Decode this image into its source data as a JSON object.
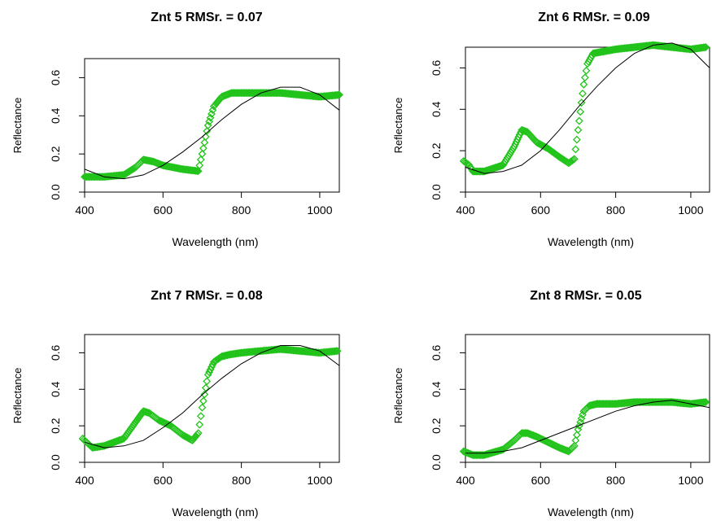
{
  "figure": {
    "background": "#ffffff",
    "observed_color": "#22c31b",
    "fit_color": "#000000"
  },
  "chart_data": [
    {
      "type": "line",
      "title": "Znt 5 RMSr. = 0.07",
      "xlabel": "Wavelength (nm)",
      "ylabel": "Reflectance",
      "xlim": [
        400,
        1050
      ],
      "ylim": [
        0,
        0.7
      ],
      "xticks": [
        400,
        600,
        800,
        1000
      ],
      "xtick_labels": [
        "400",
        "600",
        "800",
        "1000"
      ],
      "yticks": [
        0,
        0.2,
        0.4,
        0.6
      ],
      "ytick_labels": [
        "0.0",
        "0.2",
        "0.4",
        "0.6"
      ],
      "grid": false,
      "series": [
        {
          "role": "observed",
          "marker": "diamond-open",
          "x": [
            400,
            450,
            500,
            530,
            550,
            575,
            600,
            650,
            690,
            700,
            715,
            730,
            750,
            775,
            800,
            850,
            900,
            950,
            1000,
            1050
          ],
          "y": [
            0.08,
            0.08,
            0.09,
            0.13,
            0.17,
            0.16,
            0.14,
            0.12,
            0.11,
            0.2,
            0.35,
            0.45,
            0.5,
            0.52,
            0.52,
            0.52,
            0.52,
            0.51,
            0.5,
            0.51
          ]
        },
        {
          "role": "fit",
          "x": [
            400,
            450,
            500,
            550,
            600,
            650,
            700,
            750,
            800,
            850,
            900,
            950,
            1000,
            1050
          ],
          "y": [
            0.12,
            0.08,
            0.07,
            0.09,
            0.14,
            0.21,
            0.29,
            0.38,
            0.46,
            0.52,
            0.55,
            0.55,
            0.51,
            0.43
          ]
        }
      ]
    },
    {
      "type": "line",
      "title": "Znt 6 RMSr. = 0.09",
      "xlabel": "Wavelength (nm)",
      "ylabel": "Reflectance",
      "xlim": [
        400,
        1050
      ],
      "ylim": [
        0,
        0.7
      ],
      "xticks": [
        400,
        600,
        800,
        1000
      ],
      "xtick_labels": [
        "400",
        "600",
        "800",
        "1000"
      ],
      "yticks": [
        0,
        0.2,
        0.4,
        0.6
      ],
      "ytick_labels": [
        "0.0",
        "0.2",
        "0.4",
        "0.6"
      ],
      "grid": false,
      "series": [
        {
          "role": "observed",
          "marker": "diamond-open",
          "x": [
            395,
            410,
            420,
            450,
            500,
            530,
            550,
            565,
            590,
            620,
            650,
            675,
            690,
            700,
            715,
            725,
            740,
            770,
            800,
            850,
            900,
            950,
            1000,
            1040
          ],
          "y": [
            0.15,
            0.13,
            0.1,
            0.1,
            0.13,
            0.22,
            0.3,
            0.29,
            0.24,
            0.21,
            0.17,
            0.14,
            0.16,
            0.3,
            0.52,
            0.62,
            0.67,
            0.68,
            0.69,
            0.7,
            0.71,
            0.7,
            0.69,
            0.7
          ]
        },
        {
          "role": "fit",
          "x": [
            400,
            450,
            500,
            550,
            600,
            650,
            700,
            750,
            800,
            850,
            900,
            950,
            1000,
            1050
          ],
          "y": [
            0.12,
            0.09,
            0.1,
            0.13,
            0.2,
            0.3,
            0.41,
            0.51,
            0.6,
            0.67,
            0.71,
            0.72,
            0.69,
            0.6
          ]
        }
      ]
    },
    {
      "type": "line",
      "title": "Znt 7 RMSr. = 0.08",
      "xlabel": "Wavelength (nm)",
      "ylabel": "Reflectance",
      "xlim": [
        400,
        1050
      ],
      "ylim": [
        0,
        0.7
      ],
      "xticks": [
        400,
        600,
        800,
        1000
      ],
      "xtick_labels": [
        "400",
        "600",
        "800",
        "1000"
      ],
      "yticks": [
        0,
        0.2,
        0.4,
        0.6
      ],
      "ytick_labels": [
        "0.0",
        "0.2",
        "0.4",
        "0.6"
      ],
      "grid": false,
      "series": [
        {
          "role": "observed",
          "marker": "diamond-open",
          "x": [
            395,
            410,
            420,
            450,
            500,
            530,
            550,
            565,
            590,
            620,
            650,
            675,
            690,
            700,
            715,
            730,
            750,
            770,
            800,
            850,
            900,
            950,
            1000,
            1045
          ],
          "y": [
            0.13,
            0.1,
            0.08,
            0.09,
            0.13,
            0.22,
            0.28,
            0.27,
            0.23,
            0.2,
            0.15,
            0.12,
            0.16,
            0.3,
            0.48,
            0.55,
            0.58,
            0.59,
            0.6,
            0.61,
            0.62,
            0.61,
            0.6,
            0.61
          ]
        },
        {
          "role": "fit",
          "x": [
            400,
            450,
            500,
            550,
            600,
            650,
            700,
            750,
            800,
            850,
            900,
            950,
            1000,
            1050
          ],
          "y": [
            0.11,
            0.08,
            0.09,
            0.12,
            0.19,
            0.27,
            0.37,
            0.46,
            0.54,
            0.6,
            0.64,
            0.64,
            0.61,
            0.53
          ]
        }
      ]
    },
    {
      "type": "line",
      "title": "Znt 8 RMSr. = 0.05",
      "xlabel": "Wavelength (nm)",
      "ylabel": "Reflectance",
      "xlim": [
        400,
        1050
      ],
      "ylim": [
        0,
        0.7
      ],
      "xticks": [
        400,
        600,
        800,
        1000
      ],
      "xtick_labels": [
        "400",
        "600",
        "800",
        "1000"
      ],
      "yticks": [
        0,
        0.2,
        0.4,
        0.6
      ],
      "ytick_labels": [
        "0.0",
        "0.2",
        "0.4",
        "0.6"
      ],
      "grid": false,
      "series": [
        {
          "role": "observed",
          "marker": "diamond-open",
          "x": [
            395,
            420,
            450,
            500,
            530,
            550,
            565,
            590,
            620,
            650,
            675,
            690,
            700,
            715,
            730,
            750,
            800,
            850,
            900,
            950,
            1000,
            1040
          ],
          "y": [
            0.06,
            0.04,
            0.04,
            0.07,
            0.12,
            0.16,
            0.16,
            0.14,
            0.11,
            0.08,
            0.06,
            0.09,
            0.18,
            0.28,
            0.31,
            0.32,
            0.32,
            0.33,
            0.33,
            0.33,
            0.32,
            0.33
          ]
        },
        {
          "role": "fit",
          "x": [
            400,
            450,
            500,
            550,
            600,
            650,
            700,
            750,
            800,
            850,
            900,
            950,
            1000,
            1050
          ],
          "y": [
            0.05,
            0.05,
            0.06,
            0.08,
            0.12,
            0.16,
            0.2,
            0.24,
            0.28,
            0.31,
            0.33,
            0.34,
            0.32,
            0.3
          ]
        }
      ]
    }
  ]
}
